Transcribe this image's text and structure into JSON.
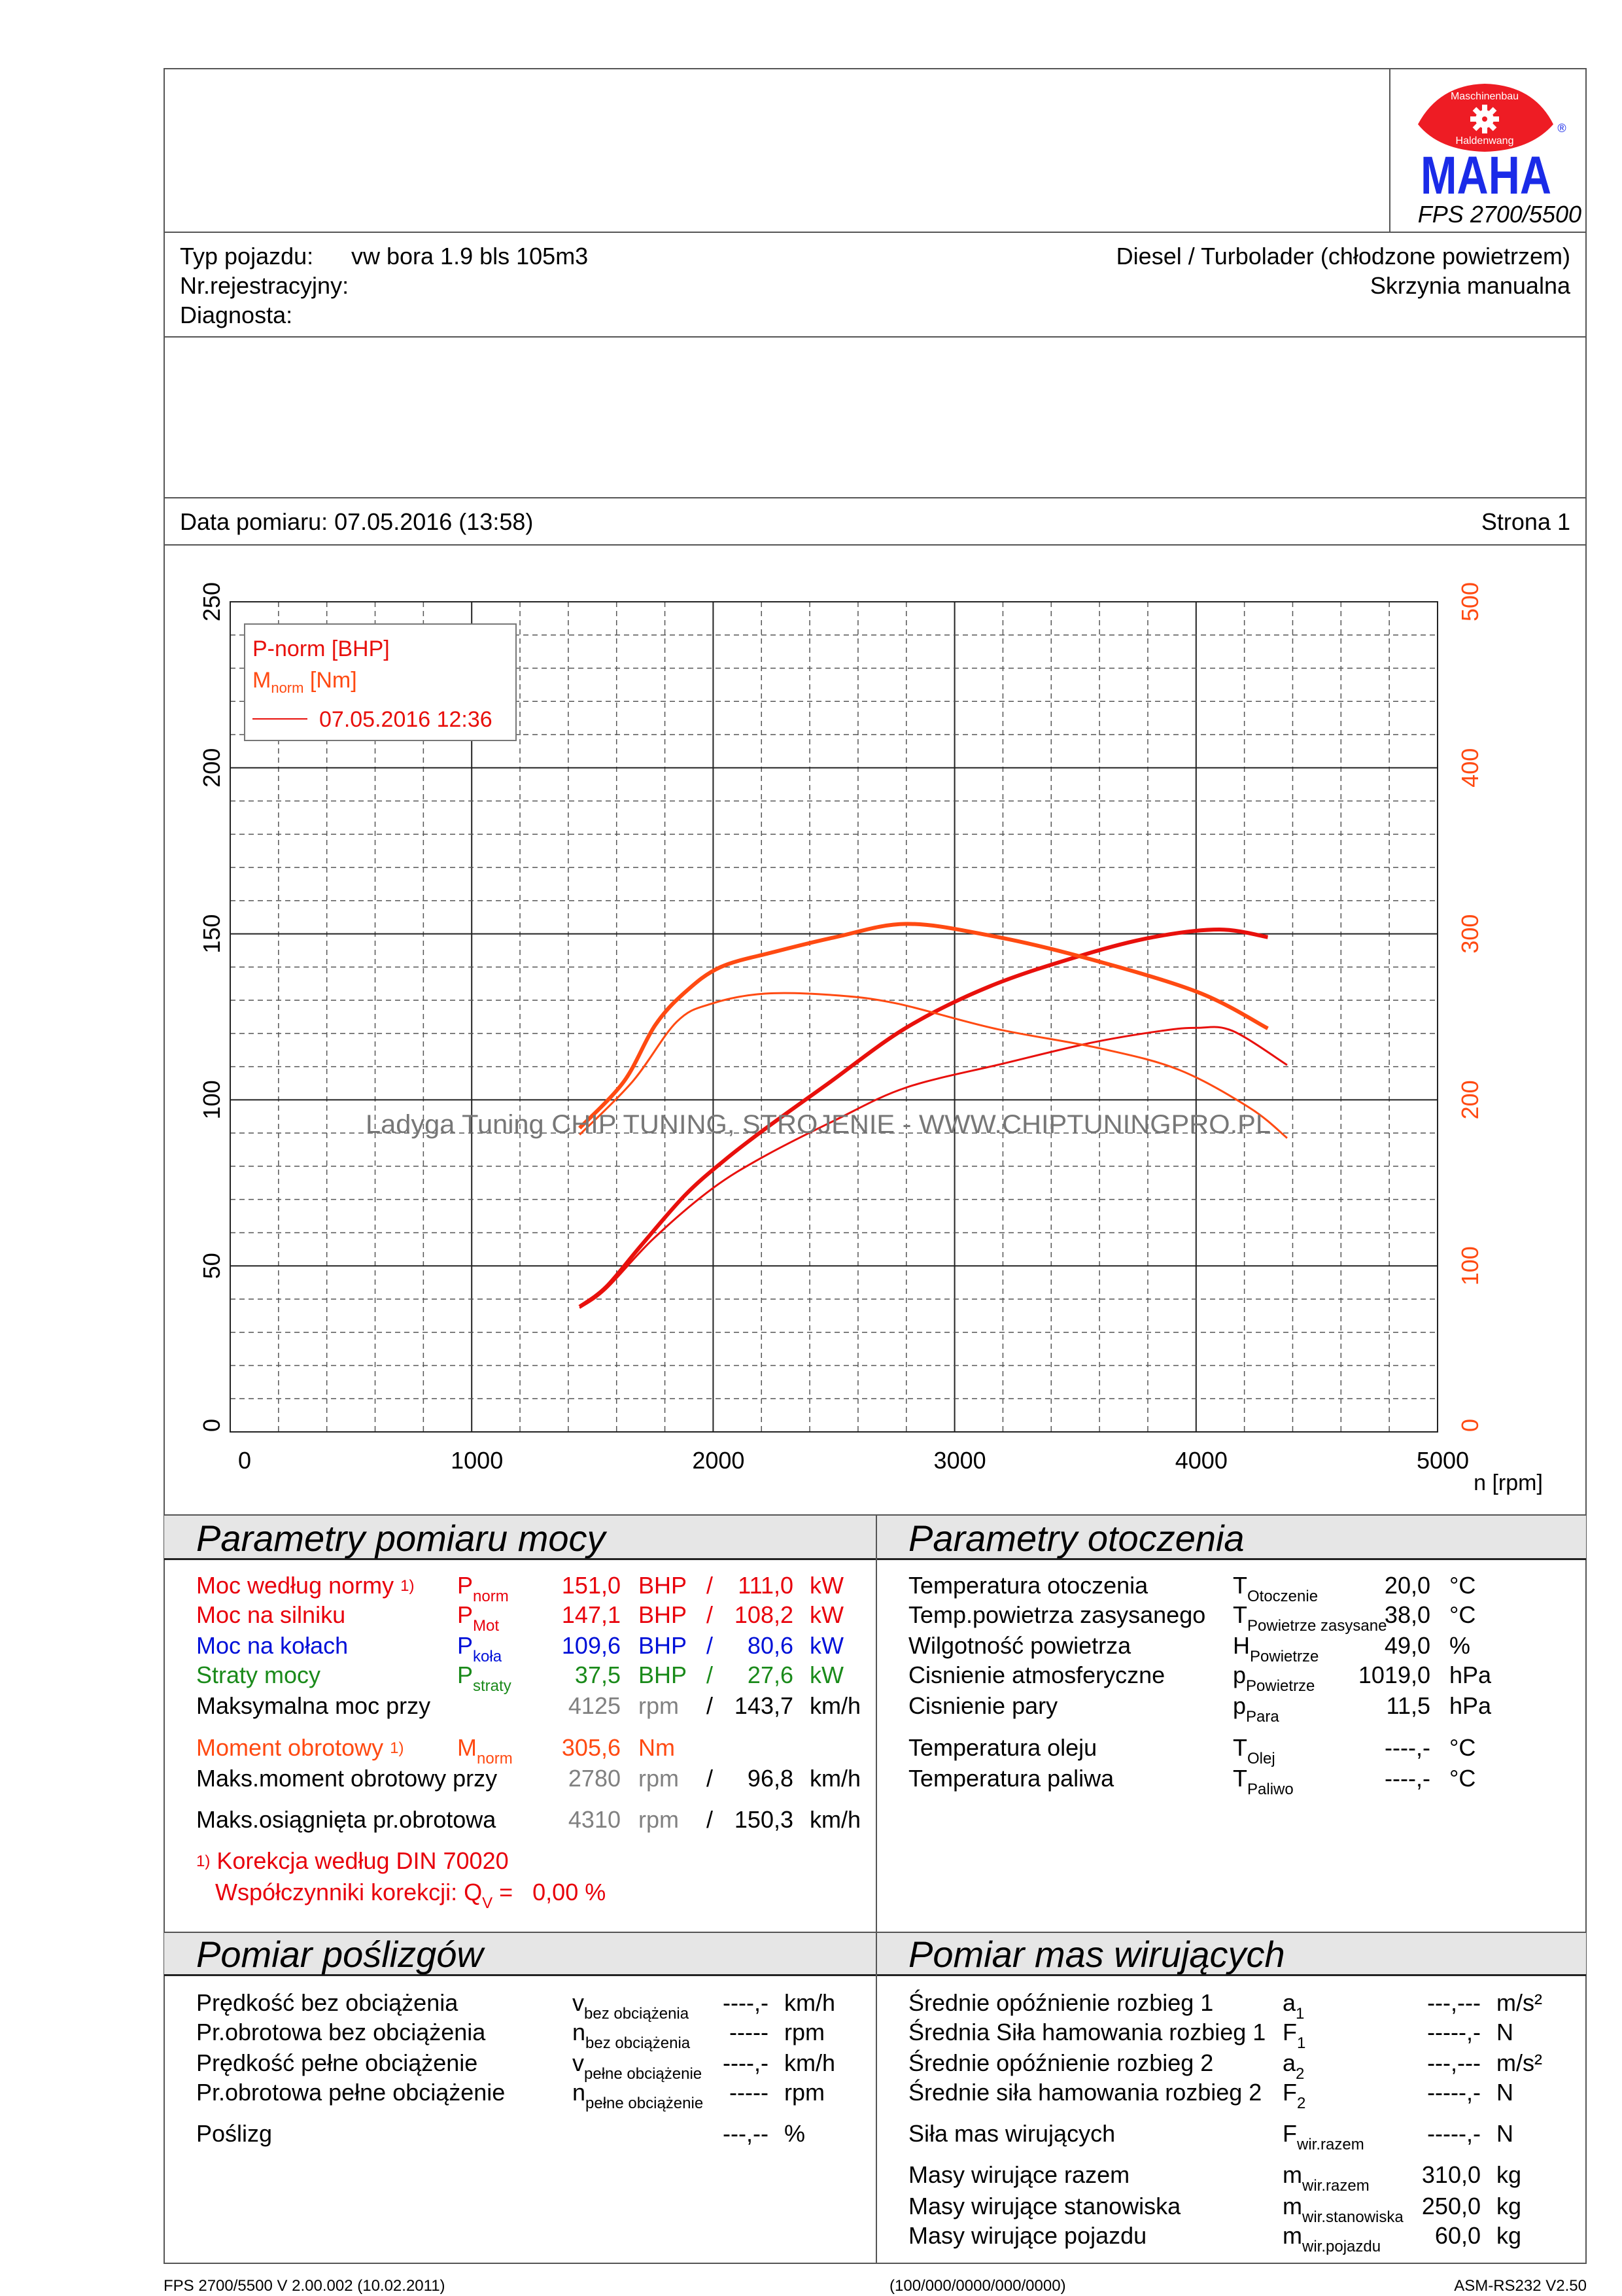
{
  "header": {
    "logo": {
      "top_text": "Maschinenbau",
      "bottom_text": "Haldenwang",
      "brand": "MAHA",
      "registered": "®"
    },
    "model": "FPS 2700/5500"
  },
  "vehicle": {
    "type_label": "Typ pojazdu:",
    "type_value": "vw bora 1.9 bls 105m3",
    "reg_label": "Nr.rejestracyjny:",
    "diag_label": "Diagnosta:",
    "engine": "Diesel / Turbolader (chłodzone powietrzem)",
    "gearbox": "Skrzynia manualna"
  },
  "measurement": {
    "date_label": "Data pomiaru: 07.05.2016 (13:58)",
    "page_label": "Strona 1"
  },
  "chart_data": {
    "type": "line",
    "xlabel": "n [rpm]",
    "xlim": [
      0,
      5000
    ],
    "x_ticks": [
      "0",
      "1000",
      "2000",
      "3000",
      "4000",
      "5000"
    ],
    "ylim_left": [
      0,
      250
    ],
    "y_ticks_left": [
      "0",
      "50",
      "100",
      "150",
      "200",
      "250"
    ],
    "ylim_right": [
      0,
      500
    ],
    "y_ticks_right": [
      "0",
      "100",
      "200",
      "300",
      "400",
      "500"
    ],
    "grid": true,
    "legend": {
      "placement": "top-left",
      "power_label": "P-norm [BHP]",
      "torque_main": "M",
      "torque_sub": "norm",
      "torque_unit": " [Nm]",
      "run_label": "07.05.2016 12:36"
    },
    "watermark": "Ladyga Tuning CHIP TUNING, STROJENIE - WWW.CHIPTUNINGPRO.PL",
    "colors": {
      "power": "#e8100c",
      "torque": "#ff4a12",
      "axis_right": "#ff4a12"
    },
    "series": [
      {
        "name": "P-norm [BHP]",
        "axis": "left",
        "weight": "thick",
        "color": "#e8100c",
        "x": [
          1447,
          1556,
          1700,
          1885,
          2050,
          2214,
          2470,
          2799,
          3146,
          3530,
          3822,
          4096,
          4297
        ],
        "y": [
          37.7,
          43.6,
          56,
          71.4,
          82,
          91.2,
          104.6,
          121.7,
          134.2,
          143.6,
          149.0,
          151.3,
          149.0
        ]
      },
      {
        "name": "M-norm [Nm]",
        "axis": "right",
        "weight": "thick",
        "color": "#ff4a12",
        "x": [
          1447,
          1630,
          1760,
          1885,
          2031,
          2250,
          2506,
          2799,
          3146,
          3530,
          4005,
          4297
        ],
        "y": [
          183,
          211,
          245,
          265,
          280,
          289,
          298,
          306,
          299,
          286,
          265,
          243
        ]
      },
      {
        "name": "P (run 2)",
        "axis": "left",
        "weight": "thin",
        "color": "#e8100c",
        "x": [
          1447,
          1556,
          1750,
          1995,
          2214,
          2506,
          2799,
          3200,
          3566,
          3858,
          4005,
          4150,
          4377
        ],
        "y": [
          37.3,
          43,
          58,
          73.2,
          83.1,
          93.9,
          103.7,
          110.9,
          117.2,
          120.8,
          121.7,
          120.8,
          110.5
        ]
      },
      {
        "name": "M (run 2)",
        "axis": "right",
        "weight": "thin",
        "color": "#ff4a12",
        "x": [
          1447,
          1666,
          1849,
          1995,
          2214,
          2506,
          2762,
          3164,
          3603,
          3931,
          4224,
          4377
        ],
        "y": [
          179,
          211,
          247,
          258,
          264,
          263,
          258,
          243,
          231,
          218,
          195,
          177
        ]
      }
    ]
  },
  "power": {
    "title": "Parametry pomiaru mocy",
    "rows": [
      {
        "label": "Moc według normy",
        "sup": "1)",
        "sym": "P",
        "sub": "norm",
        "v1": "151,0",
        "u1": "BHP",
        "sep": "/",
        "v2": "111,0",
        "u2": "kW",
        "color": "#e8000b",
        "v1color": "#e8000b"
      },
      {
        "label": "Moc na silniku",
        "sup": "",
        "sym": "P",
        "sub": "Mot",
        "v1": "147,1",
        "u1": "BHP",
        "sep": "/",
        "v2": "108,2",
        "u2": "kW",
        "color": "#e8000b",
        "v1color": "#e8000b"
      },
      {
        "label": "Moc na kołach",
        "sup": "",
        "sym": "P",
        "sub": "koła",
        "v1": "109,6",
        "u1": "BHP",
        "sep": "/",
        "v2": "80,6",
        "u2": "kW",
        "color": "#0010d8",
        "v1color": "#0010d8"
      },
      {
        "label": "Straty mocy",
        "sup": "",
        "sym": "P",
        "sub": "straty",
        "v1": "37,5",
        "u1": "BHP",
        "sep": "/",
        "v2": "27,6",
        "u2": "kW",
        "color": "#1a8a1a",
        "v1color": "#1a8a1a"
      },
      {
        "label": "Maksymalna moc przy",
        "sup": "",
        "sym": "",
        "sub": "",
        "v1": "4125",
        "u1": "rpm",
        "sep": "/",
        "v2": "143,7",
        "u2": "km/h",
        "color": "#000000",
        "v1color": "#808080"
      },
      {
        "label": "Moment obrotowy",
        "sup": "1)",
        "sym": "M",
        "sub": "norm",
        "v1": "305,6",
        "u1": "Nm",
        "sep": "",
        "v2": "",
        "u2": "",
        "color": "#ff4a12",
        "v1color": "#ff4a12"
      },
      {
        "label": "Maks.moment obrotowy przy",
        "sup": "",
        "sym": "",
        "sub": "",
        "v1": "2780",
        "u1": "rpm",
        "sep": "/",
        "v2": "96,8",
        "u2": "km/h",
        "color": "#000000",
        "v1color": "#808080"
      },
      {
        "label": "Maks.osiągnięta pr.obrotowa",
        "sup": "",
        "sym": "",
        "sub": "",
        "v1": "4310",
        "u1": "rpm",
        "sep": "/",
        "v2": "150,3",
        "u2": "km/h",
        "color": "#000000",
        "v1color": "#808080"
      }
    ],
    "note_mark": "1)",
    "note": "Korekcja według DIN 70020",
    "corr_label": "Współczynniki korekcji: Q",
    "corr_sub": "V",
    "corr_eq": " =",
    "corr_value": "0,00 %"
  },
  "ambient": {
    "title": "Parametry otoczenia",
    "rows": [
      {
        "label": "Temperatura otoczenia",
        "sym": "T",
        "sub": "Otoczenie",
        "value": "20,0",
        "unit": "°C"
      },
      {
        "label": "Temp.powietrza zasysanego",
        "sym": "T",
        "sub": "Powietrze zasysane",
        "value": "38,0",
        "unit": "°C"
      },
      {
        "label": "Wilgotność powietrza",
        "sym": "H",
        "sub": "Powietrze",
        "value": "49,0",
        "unit": "%"
      },
      {
        "label": "Cisnienie atmosferyczne",
        "sym": "p",
        "sub": "Powietrze",
        "value": "1019,0",
        "unit": "hPa"
      },
      {
        "label": "Cisnienie pary",
        "sym": "p",
        "sub": "Para",
        "value": "11,5",
        "unit": "hPa"
      },
      {
        "label": "Temperatura oleju",
        "sym": "T",
        "sub": "Olej",
        "value": "----,-",
        "unit": "°C"
      },
      {
        "label": "Temperatura paliwa",
        "sym": "T",
        "sub": "Paliwo",
        "value": "----,-",
        "unit": "°C"
      }
    ]
  },
  "slip": {
    "title": "Pomiar poślizgów",
    "rows": [
      {
        "label": "Prędkość bez obciążenia",
        "sym": "v",
        "sub": "bez obciążenia",
        "value": "----,-",
        "unit": "km/h"
      },
      {
        "label": "Pr.obrotowa bez obciążenia",
        "sym": "n",
        "sub": "bez obciążenia",
        "value": "-----",
        "unit": "rpm"
      },
      {
        "label": "Prędkość pełne obciążenie",
        "sym": "v",
        "sub": "pełne obciążenie",
        "value": "----,-",
        "unit": "km/h"
      },
      {
        "label": "Pr.obrotowa pełne obciążenie",
        "sym": "n",
        "sub": "pełne obciążenie",
        "value": "-----",
        "unit": "rpm"
      },
      {
        "label": "Poślizg",
        "sym": "",
        "sub": "",
        "value": "---,--",
        "unit": "%"
      }
    ]
  },
  "masses": {
    "title": "Pomiar mas wirujących",
    "rows": [
      {
        "label": "Średnie opóźnienie rozbieg 1",
        "sym": "a",
        "sub": "1",
        "value": "---,---",
        "unit": "m/s²"
      },
      {
        "label": "Średnia Siła hamowania rozbieg 1",
        "sym": "F",
        "sub": "1",
        "value": "-----,-",
        "unit": "N"
      },
      {
        "label": "Średnie opóźnienie rozbieg 2",
        "sym": "a",
        "sub": "2",
        "value": "---,---",
        "unit": "m/s²"
      },
      {
        "label": "Średnie siła hamowania rozbieg 2",
        "sym": "F",
        "sub": "2",
        "value": "-----,-",
        "unit": "N"
      },
      {
        "label": "Siła mas wirujących",
        "sym": "F",
        "sub": "wir.razem",
        "value": "-----,-",
        "unit": "N"
      },
      {
        "label": "Masy wirujące razem",
        "sym": "m",
        "sub": "wir.razem",
        "value": "310,0",
        "unit": "kg"
      },
      {
        "label": "Masy wirujące stanowiska",
        "sym": "m",
        "sub": "wir.stanowiska",
        "value": "250,0",
        "unit": "kg"
      },
      {
        "label": "Masy wirujące pojazdu",
        "sym": "m",
        "sub": "wir.pojazdu",
        "value": "60,0",
        "unit": "kg"
      }
    ]
  },
  "footer": {
    "left": "FPS 2700/5500 V 2.00.002 (10.02.2011)",
    "center": "(100/000/0000/000/0000)",
    "right": "ASM-RS232 V2.50"
  }
}
